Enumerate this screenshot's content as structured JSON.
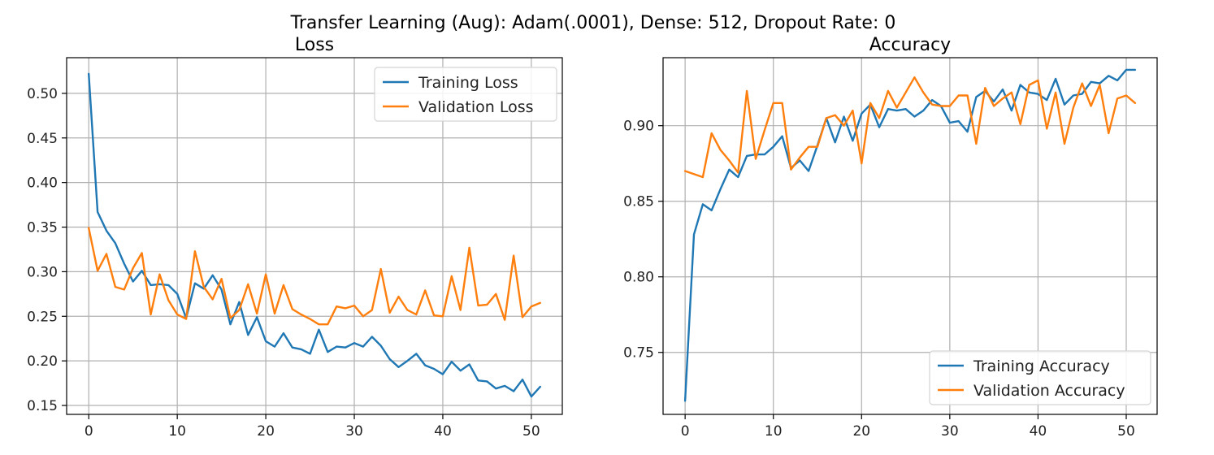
{
  "figure": {
    "suptitle": "Transfer Learning (Aug): Adam(.0001), Dense: 512, Dropout Rate: 0"
  },
  "chart_data": [
    {
      "type": "line",
      "title": "Loss",
      "xlabel": "",
      "ylabel": "",
      "xlim": [
        -2.5,
        53.5
      ],
      "ylim": [
        0.14,
        0.54
      ],
      "xticks": [
        0,
        10,
        20,
        30,
        40,
        50
      ],
      "yticks": [
        0.15,
        0.2,
        0.25,
        0.3,
        0.35,
        0.4,
        0.45,
        0.5
      ],
      "yticks_labels": [
        "0.15",
        "0.20",
        "0.25",
        "0.30",
        "0.35",
        "0.40",
        "0.45",
        "0.50"
      ],
      "grid": true,
      "legend_position": "top-right",
      "x": [
        0,
        1,
        2,
        3,
        4,
        5,
        6,
        7,
        8,
        9,
        10,
        11,
        12,
        13,
        14,
        15,
        16,
        17,
        18,
        19,
        20,
        21,
        22,
        23,
        24,
        25,
        26,
        27,
        28,
        29,
        30,
        31,
        32,
        33,
        34,
        35,
        36,
        37,
        38,
        39,
        40,
        41,
        42,
        43,
        44,
        45,
        46,
        47,
        48,
        49,
        50,
        51
      ],
      "series": [
        {
          "name": "Training Loss",
          "color": "#1f77b4",
          "values": [
            0.522,
            0.367,
            0.346,
            0.332,
            0.309,
            0.289,
            0.301,
            0.285,
            0.286,
            0.285,
            0.275,
            0.248,
            0.287,
            0.281,
            0.296,
            0.28,
            0.241,
            0.266,
            0.229,
            0.249,
            0.222,
            0.216,
            0.231,
            0.215,
            0.213,
            0.208,
            0.235,
            0.21,
            0.216,
            0.215,
            0.22,
            0.216,
            0.227,
            0.217,
            0.202,
            0.193,
            0.2,
            0.208,
            0.195,
            0.191,
            0.185,
            0.199,
            0.189,
            0.196,
            0.178,
            0.177,
            0.169,
            0.172,
            0.166,
            0.179,
            0.16,
            0.171
          ]
        },
        {
          "name": "Validation Loss",
          "color": "#ff7f0e",
          "values": [
            0.349,
            0.301,
            0.32,
            0.283,
            0.28,
            0.304,
            0.321,
            0.252,
            0.297,
            0.268,
            0.252,
            0.247,
            0.323,
            0.283,
            0.269,
            0.292,
            0.248,
            0.257,
            0.286,
            0.253,
            0.297,
            0.253,
            0.285,
            0.258,
            0.252,
            0.247,
            0.241,
            0.241,
            0.261,
            0.259,
            0.262,
            0.25,
            0.257,
            0.303,
            0.254,
            0.272,
            0.257,
            0.252,
            0.279,
            0.251,
            0.25,
            0.295,
            0.257,
            0.327,
            0.262,
            0.263,
            0.275,
            0.246,
            0.318,
            0.249,
            0.261,
            0.265
          ]
        }
      ]
    },
    {
      "type": "line",
      "title": "Accuracy",
      "xlabel": "",
      "ylabel": "",
      "xlim": [
        -2.5,
        53.5
      ],
      "ylim": [
        0.709,
        0.945
      ],
      "xticks": [
        0,
        10,
        20,
        30,
        40,
        50
      ],
      "yticks": [
        0.75,
        0.8,
        0.85,
        0.9
      ],
      "yticks_labels": [
        "0.75",
        "0.80",
        "0.85",
        "0.90"
      ],
      "grid": true,
      "legend_position": "bottom-right",
      "x": [
        0,
        1,
        2,
        3,
        4,
        5,
        6,
        7,
        8,
        9,
        10,
        11,
        12,
        13,
        14,
        15,
        16,
        17,
        18,
        19,
        20,
        21,
        22,
        23,
        24,
        25,
        26,
        27,
        28,
        29,
        30,
        31,
        32,
        33,
        34,
        35,
        36,
        37,
        38,
        39,
        40,
        41,
        42,
        43,
        44,
        45,
        46,
        47,
        48,
        49,
        50,
        51
      ],
      "series": [
        {
          "name": "Training Accuracy",
          "color": "#1f77b4",
          "values": [
            0.718,
            0.828,
            0.848,
            0.844,
            0.858,
            0.871,
            0.866,
            0.88,
            0.881,
            0.881,
            0.886,
            0.893,
            0.872,
            0.877,
            0.87,
            0.887,
            0.905,
            0.889,
            0.906,
            0.89,
            0.908,
            0.914,
            0.899,
            0.911,
            0.91,
            0.911,
            0.906,
            0.91,
            0.917,
            0.913,
            0.902,
            0.903,
            0.896,
            0.919,
            0.923,
            0.916,
            0.924,
            0.91,
            0.927,
            0.922,
            0.921,
            0.917,
            0.931,
            0.914,
            0.92,
            0.921,
            0.929,
            0.928,
            0.933,
            0.93,
            0.937,
            0.937
          ]
        },
        {
          "name": "Validation Accuracy",
          "color": "#ff7f0e",
          "values": [
            0.87,
            0.868,
            0.866,
            0.895,
            0.884,
            0.877,
            0.869,
            0.923,
            0.878,
            0.897,
            0.915,
            0.915,
            0.871,
            0.879,
            0.886,
            0.886,
            0.905,
            0.907,
            0.9,
            0.91,
            0.875,
            0.915,
            0.905,
            0.923,
            0.912,
            0.922,
            0.932,
            0.922,
            0.914,
            0.913,
            0.913,
            0.92,
            0.92,
            0.888,
            0.925,
            0.913,
            0.918,
            0.922,
            0.901,
            0.927,
            0.93,
            0.898,
            0.922,
            0.888,
            0.912,
            0.928,
            0.913,
            0.927,
            0.895,
            0.918,
            0.92,
            0.915
          ]
        }
      ]
    }
  ]
}
